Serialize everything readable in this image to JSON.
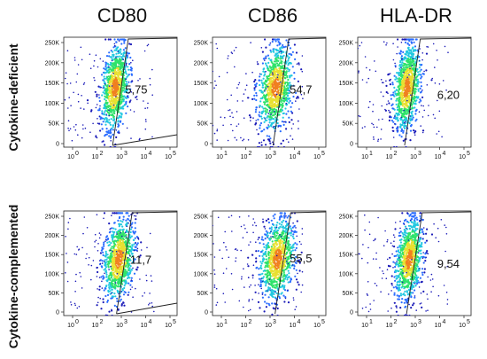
{
  "chart_data": {
    "type": "scatter",
    "columns": [
      "CD80",
      "CD86",
      "HLA-DR"
    ],
    "rows": [
      "Cytokine-deficient",
      "Cytokine-complemented"
    ],
    "y_ticks": [
      "0",
      "50K",
      "100K",
      "150K",
      "200K",
      "250K"
    ],
    "x_tick_labels": {
      "CD80": [
        "10",
        "0",
        "10",
        "2",
        "10",
        "3",
        "10",
        "4",
        "10",
        "5"
      ],
      "CD80_bottom": [
        "10",
        "0",
        "10",
        "2",
        "10",
        "3",
        "10",
        "4",
        "10",
        "5"
      ],
      "CD86": [
        "10",
        "1",
        "10",
        "2",
        "10",
        "3",
        "10",
        "4",
        "10",
        "5"
      ],
      "HLA-DR": [
        "10",
        "1",
        "10",
        "2",
        "10",
        "3",
        "10",
        "4",
        "10",
        "5"
      ]
    },
    "panels": [
      {
        "marker": "CD80",
        "condition": "Cytokine-deficient",
        "gate_percent": "5,75",
        "center_log": 2.1,
        "spread_log": 0.35
      },
      {
        "marker": "CD86",
        "condition": "Cytokine-deficient",
        "gate_percent": "54,7",
        "center_log": 2.7,
        "spread_log": 0.45
      },
      {
        "marker": "HLA-DR",
        "condition": "Cytokine-deficient",
        "gate_percent": "6,20",
        "center_log": 2.0,
        "spread_log": 0.35
      },
      {
        "marker": "CD80",
        "condition": "Cytokine-complemented",
        "gate_percent": "11,7",
        "center_log": 2.3,
        "spread_log": 0.4
      },
      {
        "marker": "CD86",
        "condition": "Cytokine-complemented",
        "gate_percent": "55,5",
        "center_log": 2.8,
        "spread_log": 0.45
      },
      {
        "marker": "HLA-DR",
        "condition": "Cytokine-complemented",
        "gate_percent": "9,54",
        "center_log": 2.1,
        "spread_log": 0.35
      }
    ],
    "colormap": [
      "#1a1ab8",
      "#2a6dff",
      "#22c8e0",
      "#2ee26a",
      "#e8e030",
      "#f08020",
      "#e02020"
    ]
  }
}
